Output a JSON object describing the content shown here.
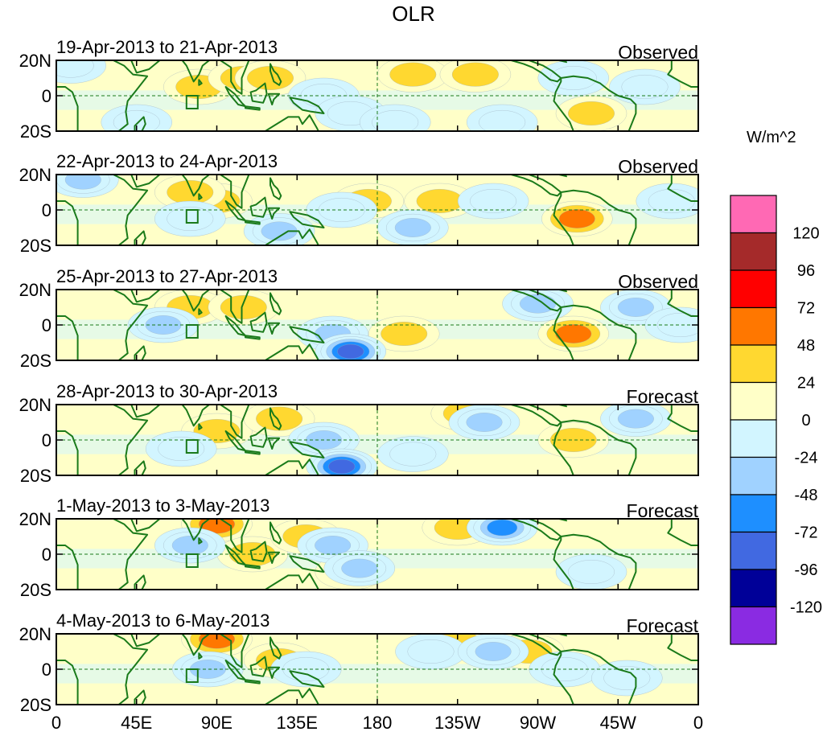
{
  "chart_data": {
    "type": "heatmap",
    "title": "OLR",
    "colorbar": {
      "unit": "W/m^2",
      "levels": [
        "120",
        "96",
        "72",
        "48",
        "24",
        "0",
        "-24",
        "-48",
        "-72",
        "-96",
        "-120"
      ],
      "colors": [
        "#ff69b4",
        "#a52a2a",
        "#ff0000",
        "#ff7700",
        "#ffd830",
        "#ffffc8",
        "#d2f5ff",
        "#a0d2ff",
        "#1e8fff",
        "#4169e1",
        "#000098",
        "#8a2be2"
      ]
    },
    "x_ticks": [
      "0",
      "45E",
      "90E",
      "135E",
      "180",
      "135W",
      "90W",
      "45W",
      "0"
    ],
    "x_values": [
      0,
      45,
      90,
      135,
      180,
      225,
      270,
      315,
      360
    ],
    "xlim": [
      0,
      360
    ],
    "y_ticks": [
      "20N",
      "0",
      "20S"
    ],
    "y_values": [
      20,
      0,
      -20
    ],
    "ylim": [
      -20,
      20
    ],
    "panels": [
      {
        "period": "19-Apr-2013 to 21-Apr-2013",
        "type": "Observed"
      },
      {
        "period": "22-Apr-2013 to 24-Apr-2013",
        "type": "Observed"
      },
      {
        "period": "25-Apr-2013 to 27-Apr-2013",
        "type": "Observed"
      },
      {
        "period": "28-Apr-2013 to 30-Apr-2013",
        "type": "Forecast"
      },
      {
        "period": "1-May-2013 to 3-May-2013",
        "type": "Forecast"
      },
      {
        "period": "4-May-2013 to 6-May-2013",
        "type": "Forecast"
      }
    ],
    "anomalies": [
      [
        {
          "lon": 80,
          "lat": 5,
          "value": 30
        },
        {
          "lon": 105,
          "lat": 10,
          "value": 35
        },
        {
          "lon": 120,
          "lat": 10,
          "value": 28
        },
        {
          "lon": 200,
          "lat": 12,
          "value": 30
        },
        {
          "lon": 235,
          "lat": 12,
          "value": 30
        },
        {
          "lon": 300,
          "lat": -10,
          "value": 30
        },
        {
          "lon": 8,
          "lat": 17,
          "value": -45
        },
        {
          "lon": 45,
          "lat": -15,
          "value": -40
        },
        {
          "lon": 150,
          "lat": 0,
          "value": -30
        },
        {
          "lon": 165,
          "lat": -10,
          "value": -35
        },
        {
          "lon": 190,
          "lat": -15,
          "value": -40
        },
        {
          "lon": 250,
          "lat": -15,
          "value": -35
        },
        {
          "lon": 290,
          "lat": 10,
          "value": -40
        },
        {
          "lon": 330,
          "lat": 5,
          "value": -35
        }
      ],
      [
        {
          "lon": 90,
          "lat": 5,
          "value": 45
        },
        {
          "lon": 75,
          "lat": 10,
          "value": 30
        },
        {
          "lon": 175,
          "lat": 5,
          "value": 28
        },
        {
          "lon": 215,
          "lat": 5,
          "value": 25
        },
        {
          "lon": 292,
          "lat": -5,
          "value": 60
        },
        {
          "lon": 15,
          "lat": 17,
          "value": -60
        },
        {
          "lon": 75,
          "lat": -5,
          "value": -45
        },
        {
          "lon": 125,
          "lat": -12,
          "value": -55
        },
        {
          "lon": 160,
          "lat": 0,
          "value": -40
        },
        {
          "lon": 200,
          "lat": -10,
          "value": -50
        },
        {
          "lon": 245,
          "lat": 5,
          "value": -35
        },
        {
          "lon": 345,
          "lat": 5,
          "value": -40
        }
      ],
      [
        {
          "lon": 75,
          "lat": 10,
          "value": 25
        },
        {
          "lon": 105,
          "lat": 10,
          "value": 30
        },
        {
          "lon": 195,
          "lat": -5,
          "value": 30
        },
        {
          "lon": 290,
          "lat": -5,
          "value": 65
        },
        {
          "lon": 60,
          "lat": 0,
          "value": -50
        },
        {
          "lon": 155,
          "lat": -5,
          "value": -55
        },
        {
          "lon": 165,
          "lat": -15,
          "value": -100
        },
        {
          "lon": 270,
          "lat": 12,
          "value": -60
        },
        {
          "lon": 325,
          "lat": 10,
          "value": -60
        },
        {
          "lon": 350,
          "lat": 0,
          "value": -40
        }
      ],
      [
        {
          "lon": 90,
          "lat": 5,
          "value": 30
        },
        {
          "lon": 125,
          "lat": 12,
          "value": 28
        },
        {
          "lon": 230,
          "lat": 15,
          "value": 25
        },
        {
          "lon": 290,
          "lat": 0,
          "value": 30
        },
        {
          "lon": 150,
          "lat": 0,
          "value": -60
        },
        {
          "lon": 160,
          "lat": -15,
          "value": -110
        },
        {
          "lon": 240,
          "lat": 10,
          "value": -60
        },
        {
          "lon": 325,
          "lat": 12,
          "value": -70
        },
        {
          "lon": 70,
          "lat": -5,
          "value": -40
        },
        {
          "lon": 200,
          "lat": -8,
          "value": -30
        }
      ],
      [
        {
          "lon": 90,
          "lat": 17,
          "value": 60
        },
        {
          "lon": 110,
          "lat": 0,
          "value": 35
        },
        {
          "lon": 140,
          "lat": 10,
          "value": 30
        },
        {
          "lon": 225,
          "lat": 15,
          "value": 30
        },
        {
          "lon": 165,
          "lat": -10,
          "value": 30
        },
        {
          "lon": 75,
          "lat": 5,
          "value": -50
        },
        {
          "lon": 155,
          "lat": 5,
          "value": -50
        },
        {
          "lon": 170,
          "lat": -8,
          "value": -55
        },
        {
          "lon": 250,
          "lat": 15,
          "value": -90
        },
        {
          "lon": 300,
          "lat": -10,
          "value": -30
        }
      ],
      [
        {
          "lon": 90,
          "lat": 17,
          "value": 60
        },
        {
          "lon": 125,
          "lat": 5,
          "value": 30
        },
        {
          "lon": 225,
          "lat": 15,
          "value": 25
        },
        {
          "lon": 265,
          "lat": 10,
          "value": 30
        },
        {
          "lon": 85,
          "lat": 0,
          "value": -55
        },
        {
          "lon": 140,
          "lat": 0,
          "value": -40
        },
        {
          "lon": 210,
          "lat": 10,
          "value": -40
        },
        {
          "lon": 245,
          "lat": 10,
          "value": -50
        },
        {
          "lon": 285,
          "lat": 0,
          "value": -40
        },
        {
          "lon": 320,
          "lat": -5,
          "value": -30
        }
      ]
    ]
  }
}
